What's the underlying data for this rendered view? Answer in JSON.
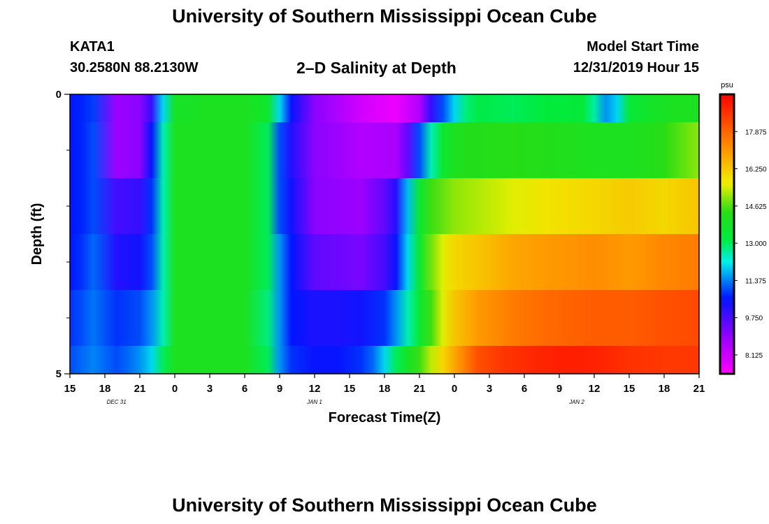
{
  "header": {
    "title": "University of Southern Mississippi Ocean Cube",
    "station": "KATA1",
    "coords": "30.2580N 88.2130W",
    "plot_title": "2–D Salinity at Depth",
    "start_label": "Model Start Time",
    "start_value": "12/31/2019 Hour 15"
  },
  "footer": {
    "title": "University of Southern Mississippi Ocean Cube"
  },
  "chart_data": {
    "type": "heatmap",
    "xlabel": "Forecast Time(Z)",
    "ylabel": "Depth (ft)",
    "x_tick_labels": [
      "15",
      "18",
      "21",
      "0",
      "3",
      "6",
      "9",
      "12",
      "15",
      "18",
      "21",
      "0",
      "3",
      "6",
      "9",
      "12",
      "15",
      "18",
      "21"
    ],
    "x_start_hour": 15,
    "x_end_hour": 69,
    "date_labels": [
      {
        "label": "DEC 31",
        "hour": 19
      },
      {
        "label": "JAN 1",
        "hour": 36
      },
      {
        "label": "JAN 2",
        "hour": 58.5
      }
    ],
    "y_tick_labels": [
      "0",
      "5"
    ],
    "ylim": [
      0,
      5
    ],
    "y_minor_ticks": [
      1,
      2,
      3,
      4
    ],
    "depth_rows": [
      {
        "top": 0.0,
        "bottom": 0.5
      },
      {
        "top": 0.5,
        "bottom": 1.5
      },
      {
        "top": 1.5,
        "bottom": 2.5
      },
      {
        "top": 2.5,
        "bottom": 3.5
      },
      {
        "top": 3.5,
        "bottom": 4.5
      },
      {
        "top": 4.5,
        "bottom": 5.0
      }
    ],
    "colorbar": {
      "unit": "psu",
      "min": 7.3,
      "max": 19.5,
      "tick_values": [
        8.125,
        9.75,
        11.375,
        13.0,
        14.625,
        16.25,
        17.875
      ],
      "tick_labels": [
        "8.125",
        "9.750",
        "11.375",
        "13.000",
        "14.625",
        "16.250",
        "17.875"
      ]
    },
    "salinity": [
      {
        "depth_row": 0,
        "hours": [
          15,
          16,
          17,
          19,
          21,
          22,
          23,
          24,
          27,
          30,
          32,
          33,
          34,
          36,
          40,
          43,
          45,
          46,
          47,
          48,
          49,
          50,
          53,
          56,
          59,
          60,
          61,
          62,
          63,
          65,
          67,
          69
        ],
        "values": [
          10.6,
          10.7,
          10.9,
          8.8,
          9.0,
          10.0,
          12.0,
          13.8,
          14.0,
          14.0,
          13.6,
          12.0,
          10.5,
          9.0,
          8.0,
          7.6,
          8.5,
          10.0,
          11.0,
          12.0,
          12.8,
          13.1,
          13.0,
          13.2,
          13.3,
          12.6,
          11.5,
          12.0,
          13.3,
          13.8,
          14.0,
          14.0
        ]
      },
      {
        "depth_row": 1,
        "hours": [
          15,
          16,
          17,
          19,
          21,
          22,
          23,
          24,
          27,
          30,
          32,
          33,
          34,
          36,
          40,
          43,
          44,
          45,
          46,
          47,
          48,
          49,
          50,
          53,
          56,
          60,
          63,
          66,
          69
        ],
        "values": [
          10.6,
          10.7,
          11.0,
          8.8,
          9.0,
          10.5,
          12.5,
          14.0,
          14.0,
          14.0,
          13.0,
          11.0,
          10.2,
          9.0,
          8.5,
          8.6,
          9.5,
          11.0,
          12.5,
          13.5,
          14.0,
          14.2,
          14.2,
          14.3,
          14.2,
          14.0,
          14.0,
          14.3,
          15.0
        ]
      },
      {
        "depth_row": 2,
        "hours": [
          15,
          16,
          17,
          19,
          21,
          22,
          23,
          24,
          27,
          30,
          32,
          33,
          34,
          36,
          40,
          42,
          43,
          44,
          45,
          46,
          48,
          50,
          53,
          56,
          60,
          63,
          66,
          69
        ],
        "values": [
          10.6,
          10.7,
          11.0,
          9.8,
          10.0,
          10.8,
          12.5,
          14.0,
          14.0,
          14.0,
          13.0,
          11.0,
          10.4,
          9.0,
          8.8,
          9.5,
          10.2,
          11.8,
          13.5,
          14.5,
          15.0,
          15.2,
          15.5,
          15.8,
          16.0,
          16.2,
          16.0,
          16.3
        ]
      },
      {
        "depth_row": 3,
        "hours": [
          15,
          16,
          17,
          19,
          21,
          22,
          23,
          24,
          27,
          30,
          32,
          33,
          34,
          36,
          40,
          42,
          43,
          44,
          45,
          46,
          47,
          48,
          50,
          53,
          56,
          60,
          63,
          66,
          69
        ],
        "values": [
          10.6,
          10.8,
          11.2,
          10.2,
          10.4,
          11.0,
          12.5,
          14.0,
          14.0,
          14.0,
          13.0,
          11.5,
          10.6,
          9.5,
          9.2,
          9.8,
          10.5,
          12.0,
          13.5,
          14.8,
          15.5,
          16.0,
          16.3,
          16.8,
          17.0,
          17.2,
          17.0,
          17.3,
          17.5
        ]
      },
      {
        "depth_row": 4,
        "hours": [
          15,
          16,
          17,
          19,
          21,
          22,
          23,
          24,
          27,
          30,
          32,
          33,
          34,
          36,
          38,
          40,
          42,
          43,
          44,
          45,
          46,
          47,
          48,
          50,
          53,
          56,
          60,
          63,
          66,
          69
        ],
        "values": [
          10.8,
          11.0,
          11.3,
          10.8,
          11.0,
          11.5,
          12.5,
          14.0,
          14.0,
          14.0,
          12.8,
          11.5,
          10.6,
          10.3,
          10.3,
          10.4,
          10.8,
          11.5,
          12.5,
          13.5,
          14.5,
          15.5,
          16.3,
          17.0,
          17.5,
          17.8,
          18.0,
          18.0,
          18.2,
          18.3
        ]
      },
      {
        "depth_row": 5,
        "hours": [
          15,
          16,
          17,
          19,
          20,
          21,
          22,
          23,
          24,
          27,
          30,
          32,
          33,
          34,
          36,
          38,
          40,
          41,
          42,
          43,
          44,
          45,
          46,
          47,
          48,
          49,
          50,
          52,
          55,
          57,
          59,
          61,
          63,
          66,
          69
        ],
        "values": [
          11.0,
          11.2,
          11.4,
          11.0,
          11.2,
          11.5,
          12.0,
          13.0,
          14.0,
          14.0,
          14.0,
          13.0,
          11.5,
          10.8,
          10.5,
          10.5,
          10.8,
          11.2,
          12.0,
          13.0,
          13.8,
          14.5,
          15.3,
          16.0,
          16.8,
          17.5,
          18.2,
          18.6,
          18.9,
          19.0,
          19.0,
          18.9,
          18.7,
          18.6,
          18.6
        ]
      }
    ]
  }
}
